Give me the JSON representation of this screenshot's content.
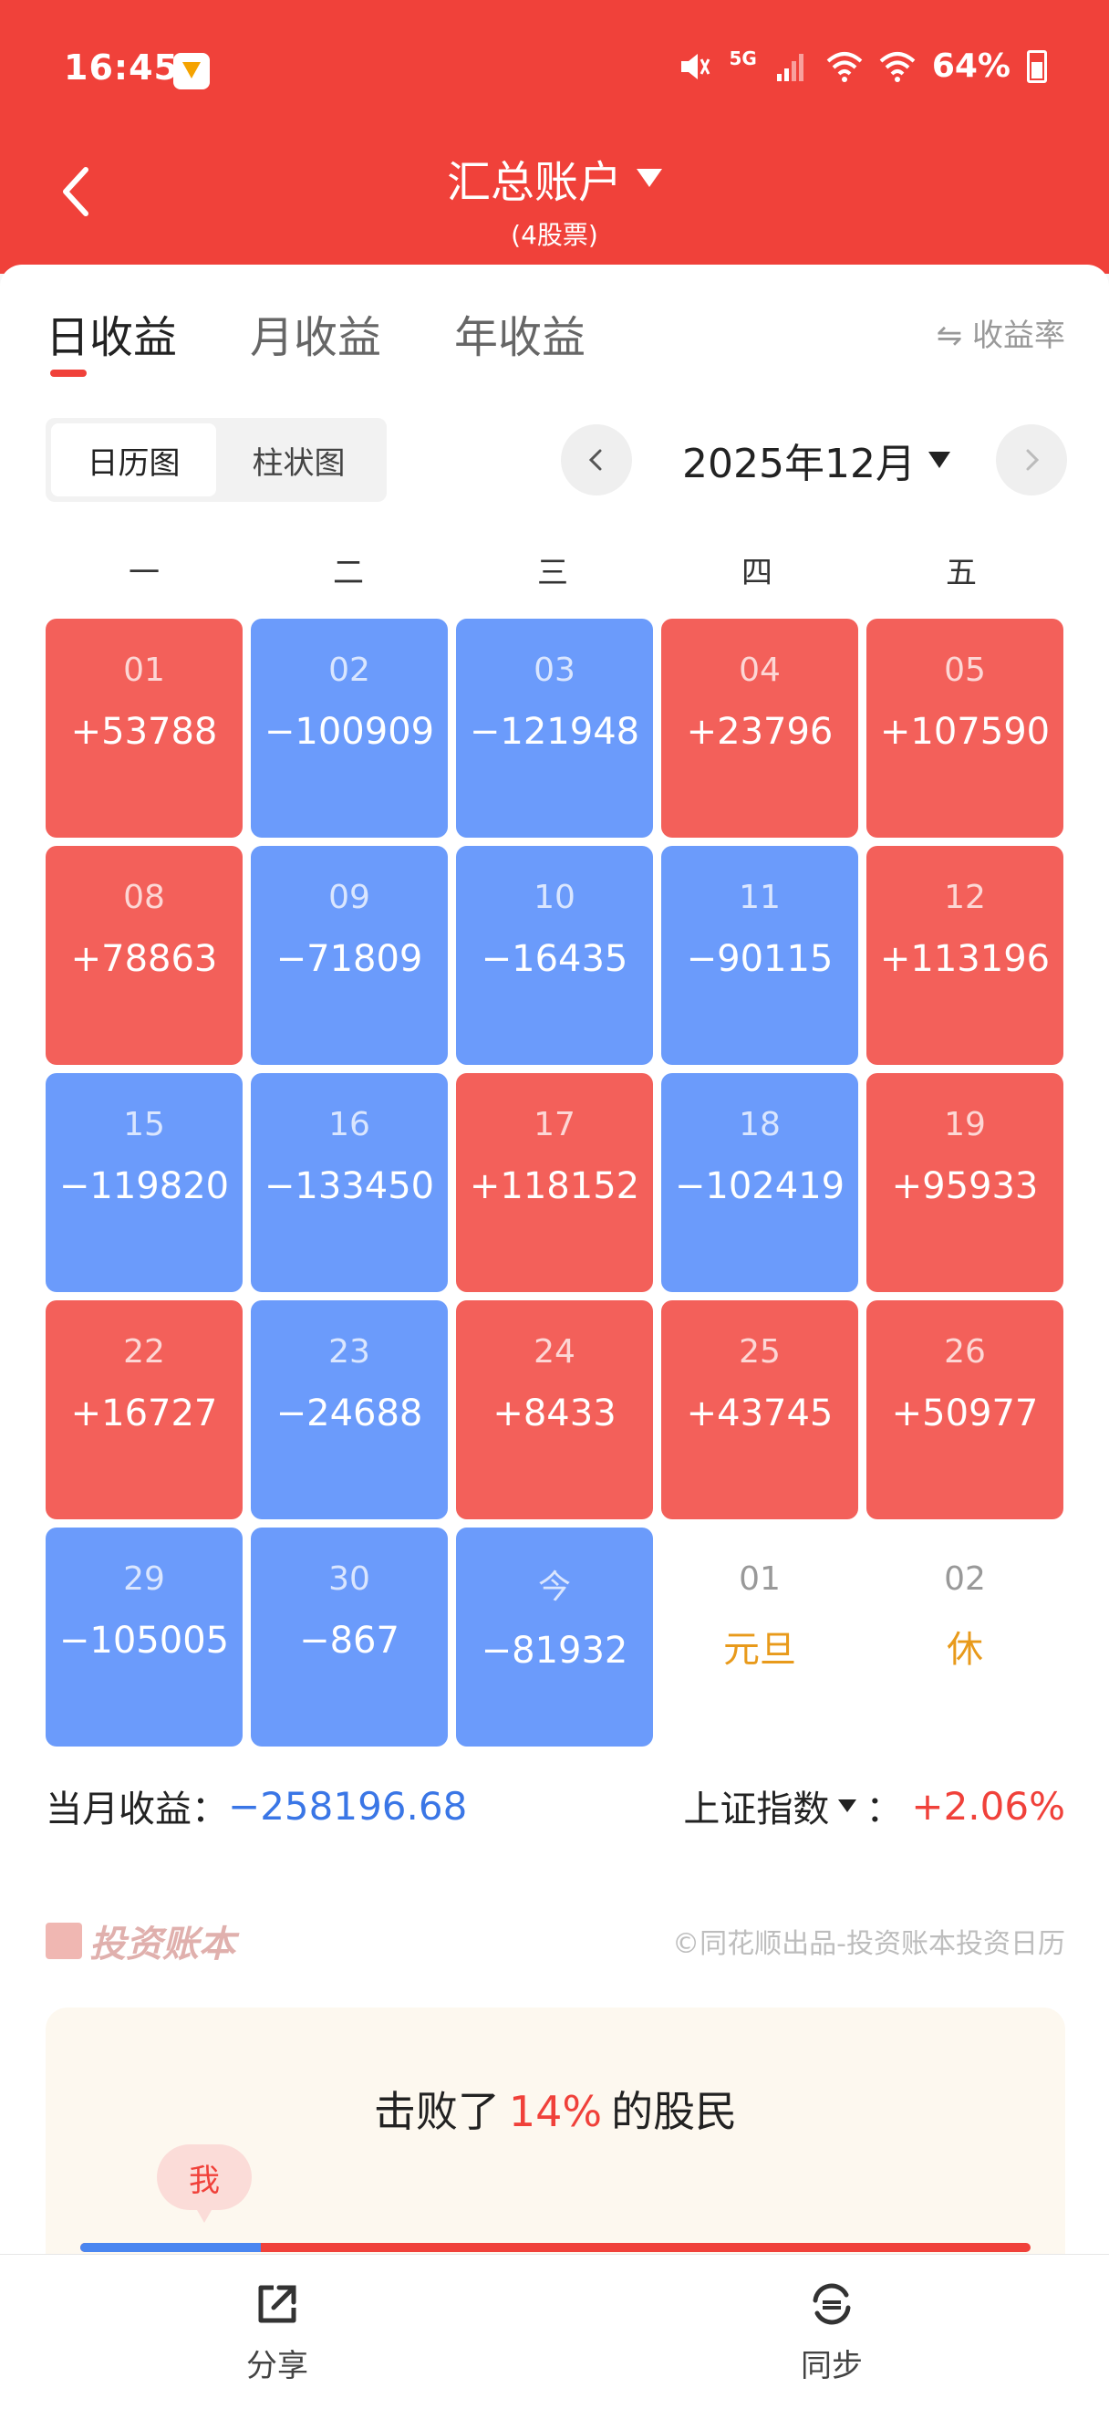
{
  "status_bar": {
    "time": "16:45",
    "network": "5G",
    "battery": "64%"
  },
  "header": {
    "title": "汇总账户",
    "subtitle": "(4股票)"
  },
  "tabs": [
    {
      "label": "日收益",
      "active": true
    },
    {
      "label": "月收益",
      "active": false
    },
    {
      "label": "年收益",
      "active": false
    }
  ],
  "rate_toggle": "⇋ 收益率",
  "view_toggle": [
    {
      "label": "日历图",
      "active": true
    },
    {
      "label": "柱状图",
      "active": false
    }
  ],
  "month_picker": {
    "label": "2025年12月"
  },
  "weekdays": [
    "一",
    "二",
    "三",
    "四",
    "五"
  ],
  "calendar": [
    {
      "day": "01",
      "value": "+53788",
      "status": "up"
    },
    {
      "day": "02",
      "value": "−100909",
      "status": "down"
    },
    {
      "day": "03",
      "value": "−121948",
      "status": "down"
    },
    {
      "day": "04",
      "value": "+23796",
      "status": "up"
    },
    {
      "day": "05",
      "value": "+107590",
      "status": "up"
    },
    {
      "day": "08",
      "value": "+78863",
      "status": "up"
    },
    {
      "day": "09",
      "value": "−71809",
      "status": "down"
    },
    {
      "day": "10",
      "value": "−16435",
      "status": "down"
    },
    {
      "day": "11",
      "value": "−90115",
      "status": "down"
    },
    {
      "day": "12",
      "value": "+113196",
      "status": "up"
    },
    {
      "day": "15",
      "value": "−119820",
      "status": "down"
    },
    {
      "day": "16",
      "value": "−133450",
      "status": "down"
    },
    {
      "day": "17",
      "value": "+118152",
      "status": "up"
    },
    {
      "day": "18",
      "value": "−102419",
      "status": "down"
    },
    {
      "day": "19",
      "value": "+95933",
      "status": "up"
    },
    {
      "day": "22",
      "value": "+16727",
      "status": "up"
    },
    {
      "day": "23",
      "value": "−24688",
      "status": "down"
    },
    {
      "day": "24",
      "value": "+8433",
      "status": "up"
    },
    {
      "day": "25",
      "value": "+43745",
      "status": "up"
    },
    {
      "day": "26",
      "value": "+50977",
      "status": "up"
    },
    {
      "day": "29",
      "value": "−105005",
      "status": "down"
    },
    {
      "day": "30",
      "value": "−867",
      "status": "down"
    },
    {
      "day": "今",
      "value": "−81932",
      "status": "down"
    },
    {
      "day": "01",
      "value": "元旦",
      "status": "blank"
    },
    {
      "day": "02",
      "value": "休",
      "status": "blank"
    }
  ],
  "summary": {
    "label": "当月收益：",
    "value": "−258196.68",
    "index_label": "上证指数",
    "index_sep": "：",
    "index_value": "+2.06%"
  },
  "brand": {
    "name": "投资账本",
    "copyright": "©同花顺出品-投资账本投资日历"
  },
  "beat": {
    "prefix": "击败了",
    "pct": "14%",
    "suffix": "的股民",
    "me_label": "我",
    "fraction": 0.19
  },
  "bottom_nav": [
    {
      "label": "分享"
    },
    {
      "label": "同步"
    }
  ],
  "colors": {
    "header_red": "#f0413a",
    "gain": "#f3605a",
    "loss": "#6b9bfb",
    "holiday": "#e89a1b",
    "negative_text": "#3a76e6"
  }
}
